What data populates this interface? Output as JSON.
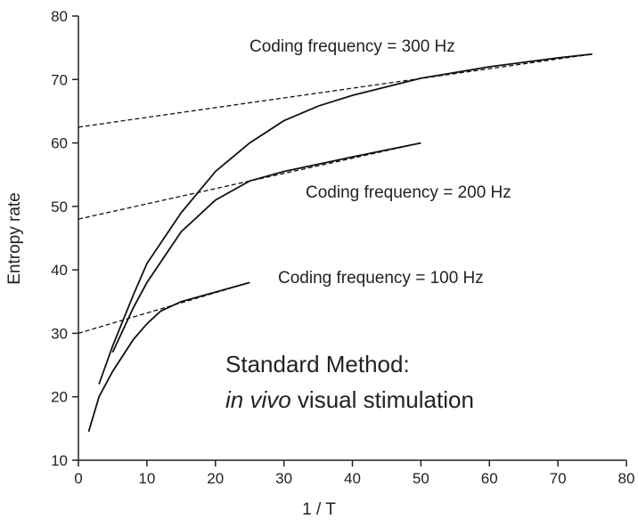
{
  "chart_data": {
    "type": "line",
    "xlabel": "1 / T",
    "ylabel": "Entropy rate",
    "xlim": [
      0,
      80
    ],
    "ylim": [
      10,
      80
    ],
    "xticks": [
      0,
      10,
      20,
      30,
      40,
      50,
      60,
      70,
      80
    ],
    "yticks": [
      10,
      20,
      30,
      40,
      50,
      60,
      70,
      80
    ],
    "color": "#111111",
    "series": [
      {
        "name": "Coding frequency = 300 Hz",
        "x": [
          3,
          5,
          8,
          10,
          15,
          20,
          25,
          30,
          35,
          40,
          50,
          60,
          70,
          75
        ],
        "values": [
          22,
          28,
          36,
          41,
          49,
          55.5,
          60,
          63.5,
          65.8,
          67.5,
          70.2,
          72,
          73.4,
          74
        ]
      },
      {
        "name": "Coding frequency = 200 Hz",
        "x": [
          5,
          8,
          10,
          15,
          20,
          25,
          30,
          40,
          50
        ],
        "values": [
          27,
          34,
          38,
          46,
          51,
          54,
          55.5,
          57.8,
          60
        ]
      },
      {
        "name": "Coding frequency = 100 Hz",
        "x": [
          1.5,
          3,
          5,
          8,
          10,
          12,
          15,
          20,
          25
        ],
        "values": [
          14.5,
          20,
          24,
          29,
          31.5,
          33.5,
          35,
          36.5,
          38
        ]
      },
      {
        "dashed": true,
        "x": [
          0,
          75
        ],
        "values": [
          62.5,
          74
        ]
      },
      {
        "dashed": true,
        "x": [
          0,
          50
        ],
        "values": [
          48,
          60
        ]
      },
      {
        "dashed": true,
        "x": [
          0,
          25
        ],
        "values": [
          30,
          38
        ]
      }
    ],
    "annotation": {
      "line1": "Standard Method:",
      "italic": "in vivo",
      "rest": " visual stimulation"
    }
  }
}
